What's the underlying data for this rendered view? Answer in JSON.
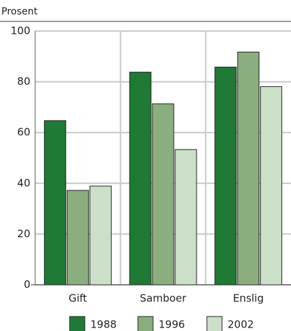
{
  "chart_data": {
    "type": "bar",
    "y_label": "Prosent",
    "categories": [
      "Gift",
      "Samboer",
      "Enslig"
    ],
    "series": [
      {
        "name": "1988",
        "color": "#1e7a34",
        "values": [
          64.7,
          83.8,
          85.8
        ]
      },
      {
        "name": "1996",
        "color": "#8aae7e",
        "values": [
          37.2,
          71.3,
          91.7
        ]
      },
      {
        "name": "2002",
        "color": "#ccdfc8",
        "values": [
          38.9,
          53.3,
          78.1
        ]
      }
    ],
    "ylim": [
      0,
      100
    ],
    "yticks": [
      0,
      20,
      40,
      60,
      80,
      100
    ],
    "grid": true,
    "legend": "bottom"
  }
}
